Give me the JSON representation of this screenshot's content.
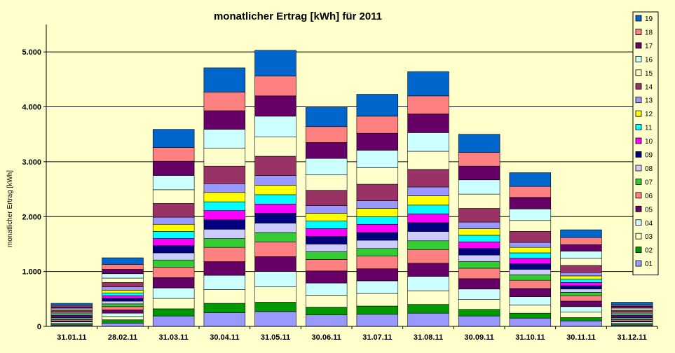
{
  "chart_data": {
    "type": "stacked-bar",
    "title": "monatlicher Ertrag [kWh] für 2011",
    "ylabel": "monatlicher Ertrag [kWh]",
    "xlabel": "",
    "ylim": [
      0,
      5500
    ],
    "yticks": [
      0,
      1000,
      2000,
      3000,
      4000,
      5000
    ],
    "ytick_labels": [
      "0",
      "1.000",
      "2.000",
      "3.000",
      "4.000",
      "5.000"
    ],
    "grid": true,
    "legend_position": "right",
    "categories": [
      "31.01.11",
      "28.02.11",
      "31.03.11",
      "30.04.11",
      "31.05.11",
      "30.06.11",
      "31.07.11",
      "31.08.11",
      "30.09.11",
      "31.10.11",
      "30.11.11",
      "31.12.11"
    ],
    "series": [
      {
        "name": "01",
        "color": "#9999ff",
        "values": [
          20,
          60,
          190,
          250,
          270,
          210,
          220,
          240,
          190,
          150,
          100,
          20
        ]
      },
      {
        "name": "02",
        "color": "#009900",
        "values": [
          20,
          60,
          130,
          170,
          170,
          140,
          150,
          160,
          120,
          90,
          60,
          20
        ]
      },
      {
        "name": "03",
        "color": "#ffffcc",
        "values": [
          20,
          60,
          190,
          250,
          280,
          220,
          230,
          250,
          180,
          150,
          100,
          20
        ]
      },
      {
        "name": "04",
        "color": "#ccffff",
        "values": [
          20,
          60,
          190,
          260,
          280,
          220,
          230,
          260,
          190,
          150,
          100,
          20
        ]
      },
      {
        "name": "05",
        "color": "#660066",
        "values": [
          20,
          60,
          190,
          250,
          270,
          220,
          220,
          240,
          190,
          150,
          100,
          20
        ]
      },
      {
        "name": "06",
        "color": "#ff8080",
        "values": [
          20,
          60,
          190,
          260,
          270,
          210,
          230,
          250,
          190,
          150,
          100,
          20
        ]
      },
      {
        "name": "07",
        "color": "#33cc33",
        "values": [
          20,
          50,
          130,
          160,
          170,
          140,
          140,
          160,
          120,
          100,
          60,
          20
        ]
      },
      {
        "name": "08",
        "color": "#ccccff",
        "values": [
          20,
          50,
          130,
          170,
          170,
          140,
          150,
          170,
          120,
          100,
          60,
          20
        ]
      },
      {
        "name": "09",
        "color": "#000080",
        "values": [
          20,
          50,
          130,
          170,
          180,
          140,
          140,
          160,
          120,
          100,
          60,
          20
        ]
      },
      {
        "name": "10",
        "color": "#ff00ff",
        "values": [
          20,
          50,
          130,
          170,
          170,
          140,
          150,
          160,
          120,
          100,
          60,
          20
        ]
      },
      {
        "name": "11",
        "color": "#00ffff",
        "values": [
          20,
          50,
          130,
          160,
          170,
          140,
          140,
          160,
          120,
          100,
          60,
          20
        ]
      },
      {
        "name": "12",
        "color": "#ffff00",
        "values": [
          20,
          50,
          130,
          170,
          170,
          140,
          150,
          170,
          120,
          100,
          60,
          20
        ]
      },
      {
        "name": "13",
        "color": "#9999ff",
        "values": [
          20,
          60,
          130,
          160,
          180,
          140,
          140,
          160,
          120,
          90,
          60,
          20
        ]
      },
      {
        "name": "14",
        "color": "#993366",
        "values": [
          30,
          80,
          250,
          320,
          350,
          280,
          300,
          320,
          250,
          200,
          130,
          30
        ]
      },
      {
        "name": "15",
        "color": "#ffffcc",
        "values": [
          20,
          80,
          250,
          330,
          350,
          280,
          300,
          330,
          260,
          200,
          130,
          30
        ]
      },
      {
        "name": "16",
        "color": "#ccffff",
        "values": [
          20,
          80,
          260,
          340,
          380,
          300,
          320,
          340,
          260,
          210,
          130,
          20
        ]
      },
      {
        "name": "17",
        "color": "#660066",
        "values": [
          30,
          80,
          260,
          340,
          370,
          290,
          310,
          340,
          250,
          210,
          120,
          30
        ]
      },
      {
        "name": "18",
        "color": "#ff8080",
        "values": [
          20,
          90,
          250,
          340,
          360,
          290,
          310,
          330,
          250,
          200,
          130,
          20
        ]
      },
      {
        "name": "19",
        "color": "#0066cc",
        "values": [
          40,
          120,
          330,
          440,
          470,
          360,
          400,
          440,
          330,
          250,
          140,
          50
        ]
      }
    ]
  }
}
